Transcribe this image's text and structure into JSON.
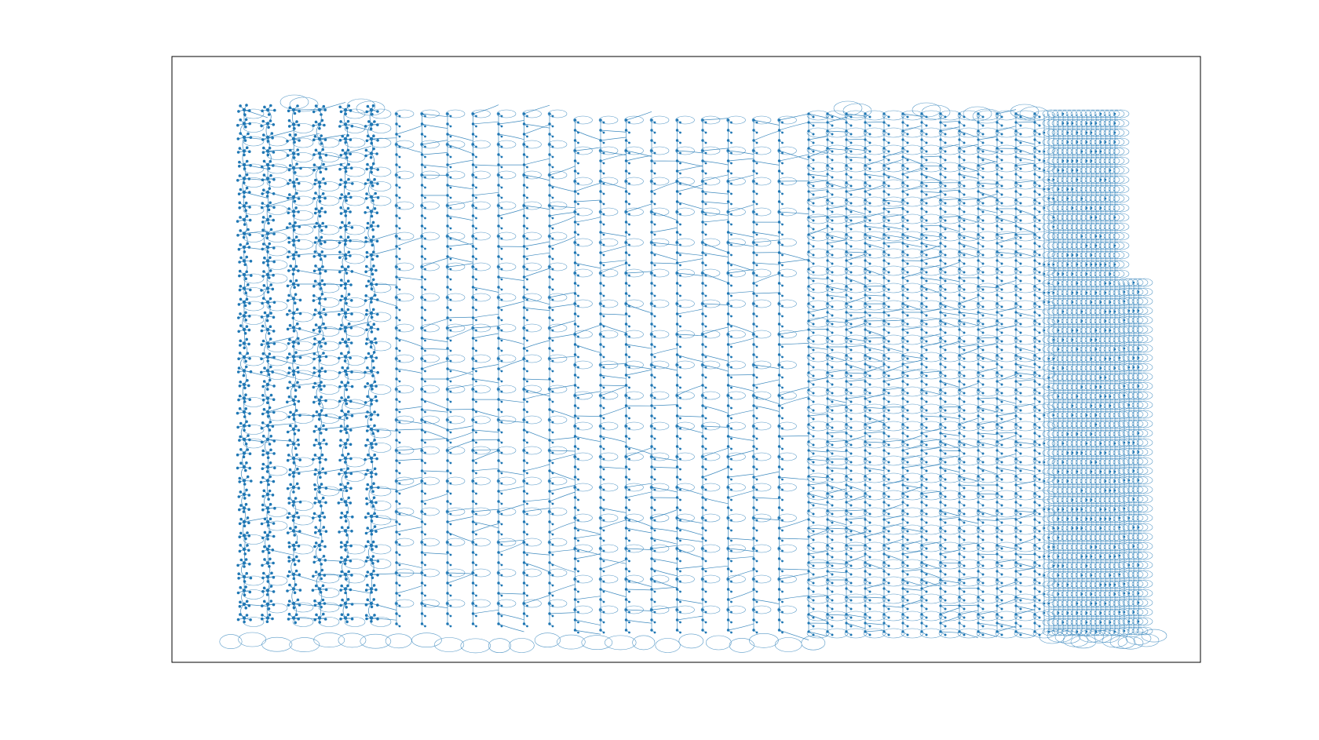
{
  "figure": {
    "background": "#ffffff",
    "frame_color": "#000000"
  },
  "graph": {
    "type": "network-graph",
    "node_color": "#1f77b4",
    "edge_color": "#1f77b4",
    "has_labels": false,
    "has_axes_ticks": false
  }
}
